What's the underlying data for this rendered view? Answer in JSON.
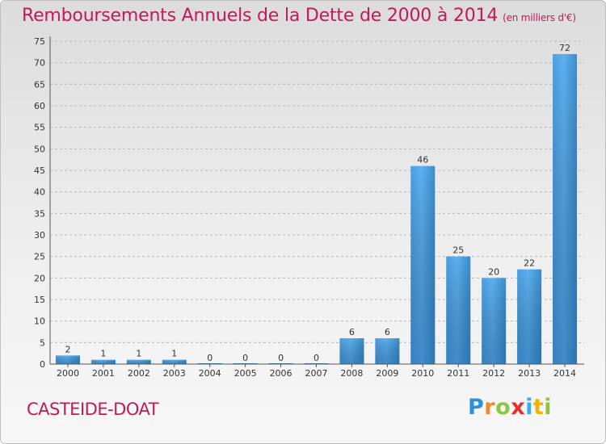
{
  "title": "Remboursements Annuels de la Dette de 2000 à 2014",
  "unit": "(en milliers d'€)",
  "place": "CASTEIDE-DOAT",
  "logo": "Proxiti",
  "colors": {
    "bar_light": "#5aaee9",
    "bar_dark": "#2c7fc0",
    "title": "#c2195a",
    "grid": "#b8b8b8"
  },
  "chart_data": {
    "type": "bar",
    "categories": [
      "2000",
      "2001",
      "2002",
      "2003",
      "2004",
      "2005",
      "2006",
      "2007",
      "2008",
      "2009",
      "2010",
      "2011",
      "2012",
      "2013",
      "2014"
    ],
    "values": [
      2,
      1,
      1,
      1,
      0,
      0,
      0,
      0,
      6,
      6,
      46,
      25,
      20,
      22,
      72
    ],
    "ylim": [
      0,
      75
    ],
    "yticks": [
      0,
      5,
      10,
      15,
      20,
      25,
      30,
      35,
      40,
      45,
      50,
      55,
      60,
      65,
      70,
      75
    ],
    "grid": "horizontal dashed",
    "xlabel": "",
    "ylabel": ""
  }
}
